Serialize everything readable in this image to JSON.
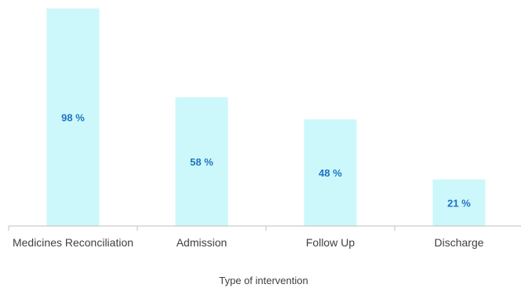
{
  "chart_data": {
    "type": "bar",
    "title": "",
    "xlabel": "Type of intervention",
    "ylabel": "",
    "categories": [
      "Medicines Reconciliation",
      "Admission",
      "Follow Up",
      "Discharge"
    ],
    "values": [
      98,
      58,
      48,
      21
    ],
    "data_labels": [
      "98 %",
      "58 %",
      "48 %",
      "21 %"
    ],
    "ylim": [
      0,
      100
    ],
    "grid": false,
    "legend": "none",
    "colors": {
      "bar": "#ccf7fb",
      "data_label": "#1f73c5",
      "axis": "#bfbfbf",
      "text": "#404040"
    }
  }
}
